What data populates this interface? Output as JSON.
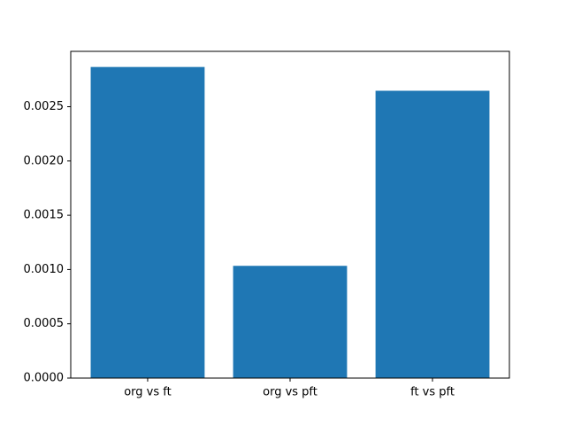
{
  "chart_data": {
    "type": "bar",
    "categories": [
      "org vs ft",
      "org vs pft",
      "ft vs pft"
    ],
    "values": [
      0.002866,
      0.001034,
      0.002647
    ],
    "color": "#1f77b4",
    "ylim": [
      0,
      0.00301
    ],
    "yticks": [
      {
        "value": 0,
        "label": "0.0000"
      },
      {
        "value": 0.0005,
        "label": "0.0005"
      },
      {
        "value": 0.001,
        "label": "0.0010"
      },
      {
        "value": 0.0015,
        "label": "0.0015"
      },
      {
        "value": 0.002,
        "label": "0.0020"
      },
      {
        "value": 0.0025,
        "label": "0.0025"
      }
    ],
    "grid": false
  }
}
